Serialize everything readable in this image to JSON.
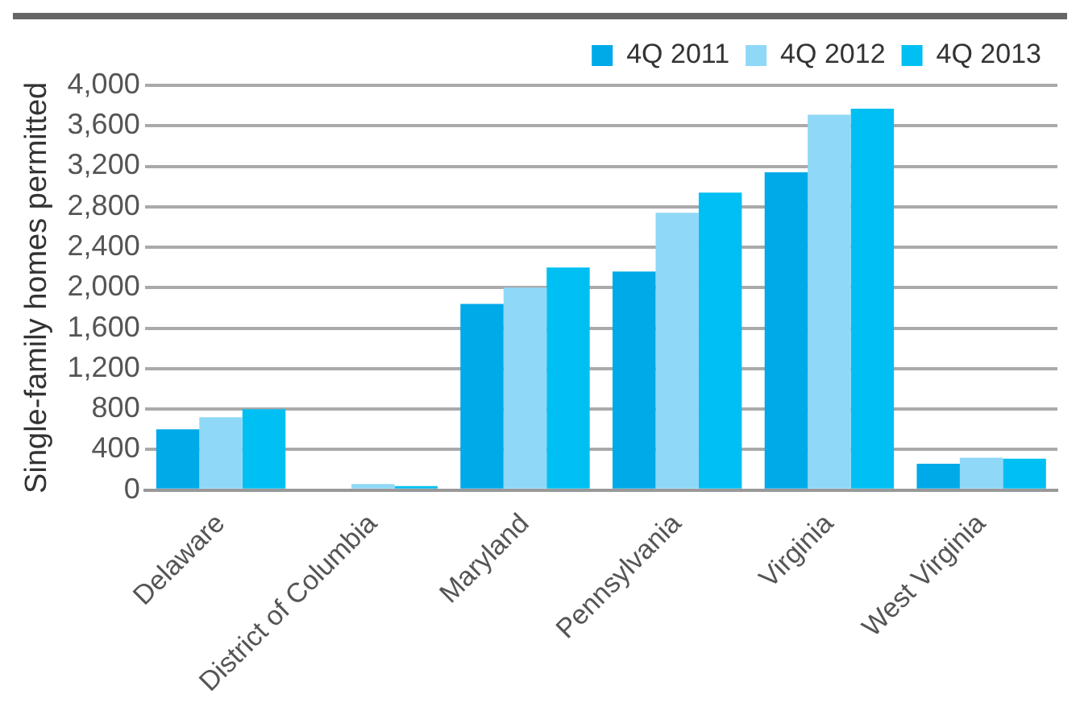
{
  "chart_data": {
    "type": "bar",
    "ylabel": "Single-family homes permitted",
    "categories": [
      "Delaware",
      "District of Columbia",
      "Maryland",
      "Pennsylvania",
      "Virginia",
      "West Virginia"
    ],
    "series": [
      {
        "name": "4Q 2011",
        "color": "#00a9e8",
        "values": [
          600,
          0,
          1840,
          2160,
          3140,
          260
        ]
      },
      {
        "name": "4Q 2012",
        "color": "#8fd8f7",
        "values": [
          720,
          60,
          2000,
          2740,
          3710,
          320
        ]
      },
      {
        "name": "4Q 2013",
        "color": "#00bff3",
        "values": [
          800,
          40,
          2200,
          2940,
          3770,
          310
        ]
      }
    ],
    "ylim": [
      0,
      4000
    ],
    "yticks": [
      0,
      400,
      800,
      {
        "value": 1200,
        "label": "1,200"
      },
      {
        "value": 1600,
        "label": "1,600"
      },
      {
        "value": 2000,
        "label": "2,000"
      },
      {
        "value": 2400,
        "label": "2,400"
      },
      {
        "value": 2800,
        "label": "2,800"
      },
      {
        "value": 3200,
        "label": "3,200"
      },
      {
        "value": 3600,
        "label": "3,600"
      },
      {
        "value": 4000,
        "label": "4,000"
      }
    ],
    "grid": "y",
    "legend": "top right"
  }
}
